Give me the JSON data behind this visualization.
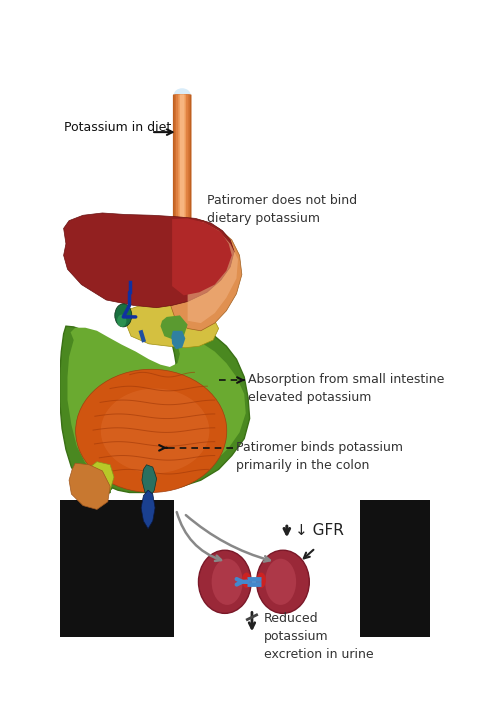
{
  "bg_color": "#ffffff",
  "black_panel_color": "#111111",
  "label_potassium_diet": "Potassium in diet",
  "label_patiromer_no_bind": "Patiromer does not bind\ndietary potassium",
  "label_absorption": "Absorption from small intestine\nelevated potassium",
  "label_patiromer_binds": "Patiromer binds potassium\nprimarily in the colon",
  "label_gfr": "↓ GFR",
  "label_reduced": "Reduced\npotassium\nexcretion in urine",
  "esophagus_color": "#e07040",
  "esophagus_light": "#f0a070",
  "esophagus_highlight": "#fad0a0",
  "liver_color": "#922020",
  "liver_mid": "#b02828",
  "stomach_color": "#e09050",
  "stomach_light": "#f0b080",
  "pancreas_color": "#d4c040",
  "intestine_large_color": "#4a8820",
  "intestine_large_light": "#6aaa30",
  "intestine_small_color": "#d05510",
  "intestine_small_light": "#e07030",
  "gallbladder_color": "#1a7040",
  "bile_duct_color": "#0a4020",
  "appendix_top_color": "#2a7060",
  "appendix_bot_color": "#1a4090",
  "kidney_dark": "#7a1828",
  "kidney_mid": "#9a2838",
  "kidney_light": "#c04858",
  "hilum_red": "#cc2222",
  "blue_vessel": "#4488cc",
  "arrow_gray": "#777777",
  "arrow_dark": "#222222",
  "text_dark": "#333333",
  "font_size": 9,
  "font_size_gfr": 11
}
